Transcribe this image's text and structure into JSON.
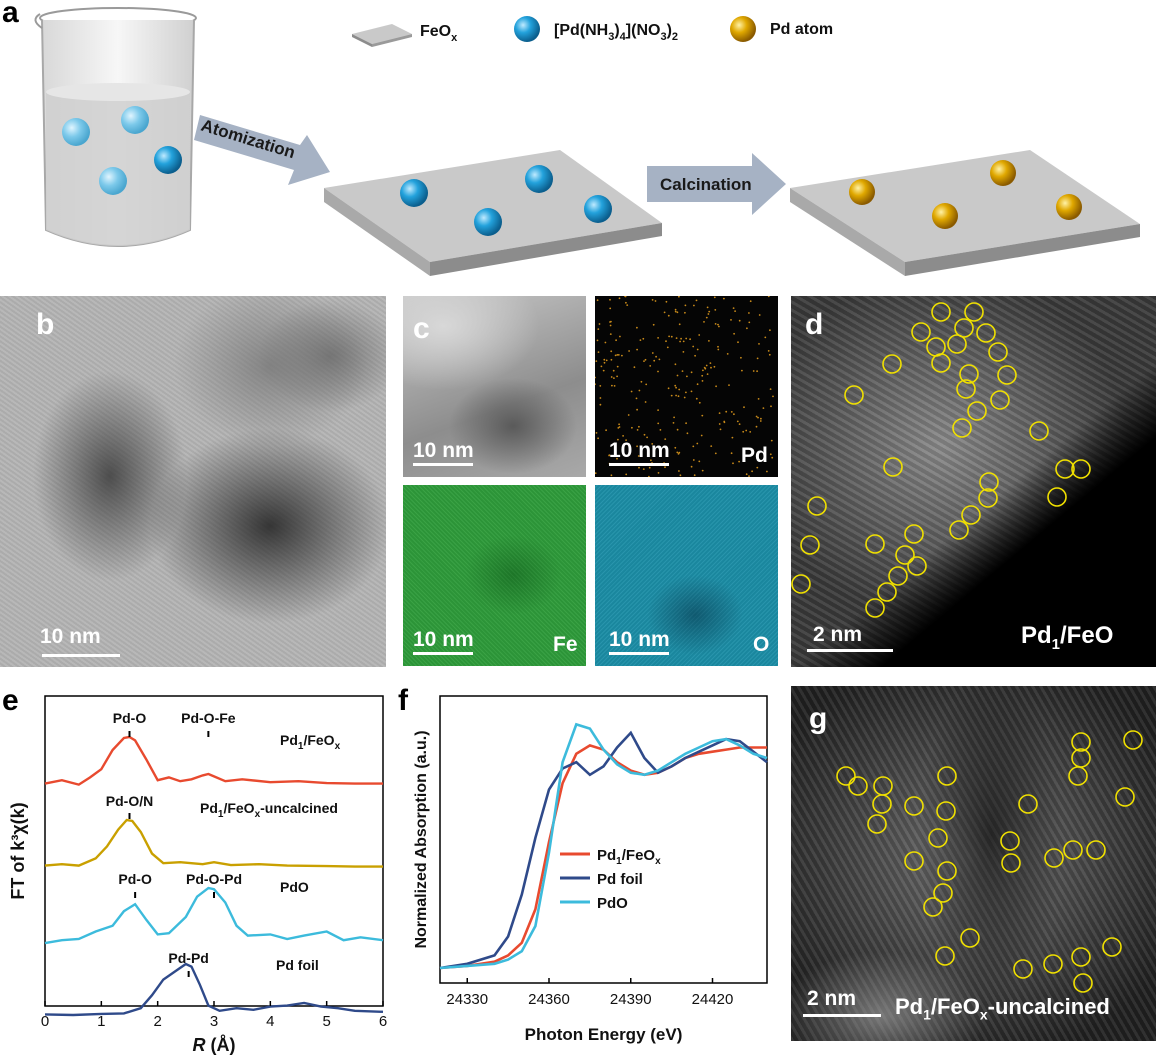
{
  "panel_a": {
    "letter": "a",
    "legend_feox": "FeO",
    "legend_feox_sub": "x",
    "legend_precursor": "[Pd(NH",
    "legend_precursor_sub1": "3",
    "legend_precursor_mid": ")",
    "legend_precursor_sub2": "4",
    "legend_precursor_end": "](NO",
    "legend_precursor_sub3": "3",
    "legend_precursor_tail": ")",
    "legend_precursor_sub4": "2",
    "legend_pd_atom": "Pd atom",
    "arrow1_label": "Atomization",
    "arrow2_label": "Calcination",
    "colors": {
      "precursor": "#1e9ad6",
      "pd_atom": "#d9a300",
      "support": "#bfbfbf",
      "arrow": "#9aa7bb"
    }
  },
  "panel_b": {
    "letter": "b",
    "scale": "10 nm"
  },
  "panel_c": {
    "letter": "c",
    "tiles": [
      {
        "scale": "10 nm",
        "element": ""
      },
      {
        "scale": "10 nm",
        "element": "Pd"
      },
      {
        "scale": "10 nm",
        "element": "Fe"
      },
      {
        "scale": "10 nm",
        "element": "O"
      }
    ],
    "colors": {
      "pd": "#c88a1a",
      "fe": "#27a83a",
      "o": "#1b9bb5"
    }
  },
  "panel_d": {
    "letter": "d",
    "scale": "2 nm",
    "label_main": "Pd",
    "label_sub": "1",
    "label_end": "/FeO"
  },
  "panel_g": {
    "letter": "g",
    "scale": "2 nm",
    "label_main": "Pd",
    "label_sub1": "1",
    "label_mid": "/FeO",
    "label_sub2": "x",
    "label_end": "-uncalcined"
  },
  "panel_e": {
    "letter": "e",
    "chart_data": {
      "type": "line",
      "xlabel": "R (Å)",
      "ylabel": "FT of k³χ(k)",
      "xlim": [
        0,
        6
      ],
      "xticks": [
        0,
        1,
        2,
        3,
        4,
        5,
        6
      ],
      "series": [
        {
          "name": "Pd1/FeOx",
          "color": "#e84a2f",
          "offset": 3,
          "x": [
            0,
            0.3,
            0.6,
            0.8,
            1.0,
            1.2,
            1.4,
            1.5,
            1.6,
            1.8,
            2.0,
            2.2,
            2.4,
            2.6,
            2.8,
            2.9,
            3.0,
            3.2,
            3.5,
            4.0,
            4.5,
            5.0,
            5.5,
            6.0
          ],
          "y": [
            0.05,
            0.12,
            0.03,
            0.18,
            0.35,
            0.75,
            1.0,
            1.02,
            0.95,
            0.55,
            0.12,
            0.18,
            0.1,
            0.14,
            0.22,
            0.25,
            0.2,
            0.1,
            0.14,
            0.08,
            0.1,
            0.06,
            0.05,
            0.05
          ]
        },
        {
          "name": "Pd1/FeOx-uncalcined",
          "color": "#c9a000",
          "offset": 2,
          "x": [
            0,
            0.3,
            0.6,
            0.9,
            1.1,
            1.3,
            1.45,
            1.55,
            1.7,
            1.9,
            2.1,
            2.4,
            2.8,
            3.0,
            3.3,
            3.8,
            4.3,
            5.0,
            5.5,
            6.0
          ],
          "y": [
            0.05,
            0.08,
            0.05,
            0.2,
            0.45,
            0.8,
            1.0,
            0.98,
            0.75,
            0.3,
            0.1,
            0.12,
            0.08,
            0.12,
            0.06,
            0.08,
            0.05,
            0.04,
            0.03,
            0.03
          ]
        },
        {
          "name": "PdO",
          "color": "#3cbbdc",
          "offset": 1,
          "x": [
            0,
            0.3,
            0.6,
            0.9,
            1.2,
            1.4,
            1.6,
            1.8,
            2.0,
            2.2,
            2.5,
            2.7,
            2.9,
            3.0,
            3.2,
            3.4,
            3.6,
            4.0,
            4.3,
            4.6,
            5.0,
            5.3,
            5.6,
            6.0
          ],
          "y": [
            0.05,
            0.1,
            0.12,
            0.25,
            0.35,
            0.6,
            0.72,
            0.45,
            0.2,
            0.22,
            0.5,
            0.85,
            1.0,
            0.98,
            0.75,
            0.35,
            0.18,
            0.2,
            0.12,
            0.18,
            0.25,
            0.1,
            0.15,
            0.1
          ]
        },
        {
          "name": "Pd foil",
          "color": "#2f4a8a",
          "offset": 0,
          "x": [
            0,
            0.5,
            1.0,
            1.4,
            1.7,
            1.9,
            2.1,
            2.3,
            2.5,
            2.6,
            2.75,
            2.9,
            3.1,
            3.4,
            3.7,
            4.0,
            4.3,
            4.6,
            4.9,
            5.2,
            5.5,
            6.0
          ],
          "y": [
            0.03,
            0.02,
            0.04,
            0.05,
            0.15,
            0.4,
            0.7,
            0.85,
            1.0,
            0.95,
            0.6,
            0.2,
            0.1,
            0.15,
            0.12,
            0.18,
            0.2,
            0.25,
            0.18,
            0.15,
            0.1,
            0.08
          ]
        }
      ],
      "annotations": [
        {
          "text": "Pd-O",
          "x": 1.5,
          "series": 0
        },
        {
          "text": "Pd-O-Fe",
          "x": 2.9,
          "series": 0
        },
        {
          "text": "Pd-O/N",
          "x": 1.5,
          "series": 1
        },
        {
          "text": "Pd-O",
          "x": 1.6,
          "series": 2
        },
        {
          "text": "Pd-O-Pd",
          "x": 3.0,
          "series": 2
        },
        {
          "text": "Pd-Pd",
          "x": 2.55,
          "series": 3
        }
      ],
      "series_labels": [
        "Pd1/FeOx",
        "Pd1/FeOx-uncalcined",
        "PdO",
        "Pd foil"
      ]
    }
  },
  "panel_f": {
    "letter": "f",
    "chart_data": {
      "type": "line",
      "xlabel": "Photon Energy (eV)",
      "ylabel": "Normalized Absorption (a.u.)",
      "xlim": [
        24320,
        24440
      ],
      "xticks": [
        24330,
        24360,
        24390,
        24420
      ],
      "series": [
        {
          "name": "Pd1/FeOx",
          "color": "#e84a2f",
          "x": [
            24320,
            24330,
            24340,
            24345,
            24350,
            24355,
            24360,
            24365,
            24370,
            24375,
            24380,
            24385,
            24390,
            24395,
            24400,
            24405,
            24410,
            24415,
            24420,
            24425,
            24430,
            24435,
            24440
          ],
          "y": [
            0.0,
            0.01,
            0.03,
            0.06,
            0.12,
            0.28,
            0.6,
            0.88,
            1.02,
            1.06,
            1.04,
            0.98,
            0.94,
            0.92,
            0.93,
            0.96,
            1.0,
            1.02,
            1.03,
            1.04,
            1.05,
            1.05,
            1.05
          ]
        },
        {
          "name": "Pd foil",
          "color": "#2f4a8a",
          "x": [
            24320,
            24330,
            24340,
            24345,
            24350,
            24355,
            24360,
            24365,
            24370,
            24375,
            24380,
            24385,
            24390,
            24395,
            24400,
            24405,
            24410,
            24415,
            24420,
            24425,
            24430,
            24435,
            24440
          ],
          "y": [
            0.0,
            0.02,
            0.06,
            0.15,
            0.35,
            0.62,
            0.85,
            0.95,
            0.98,
            0.92,
            0.96,
            1.05,
            1.12,
            1.0,
            0.93,
            0.96,
            1.0,
            1.03,
            1.06,
            1.09,
            1.08,
            1.03,
            0.98
          ]
        },
        {
          "name": "PdO",
          "color": "#3cbbdc",
          "x": [
            24320,
            24330,
            24340,
            24345,
            24350,
            24355,
            24360,
            24365,
            24370,
            24375,
            24380,
            24385,
            24390,
            24395,
            24400,
            24405,
            24410,
            24415,
            24420,
            24425,
            24430,
            24435,
            24440
          ],
          "y": [
            0.0,
            0.01,
            0.02,
            0.04,
            0.08,
            0.2,
            0.55,
            0.98,
            1.16,
            1.14,
            1.04,
            0.97,
            0.93,
            0.92,
            0.94,
            0.98,
            1.02,
            1.05,
            1.08,
            1.09,
            1.06,
            1.02,
            1.0
          ]
        }
      ],
      "legend": [
        "Pd1/FeOx",
        "Pd foil",
        "PdO"
      ]
    }
  }
}
